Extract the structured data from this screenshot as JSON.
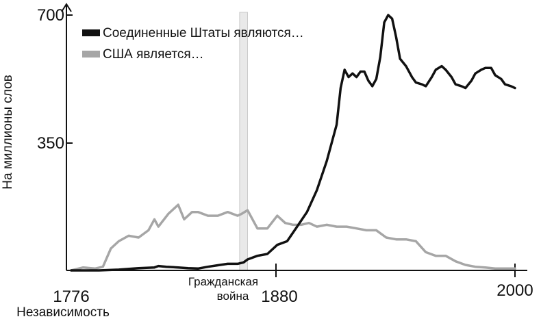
{
  "chart_data": {
    "type": "line",
    "title": "",
    "xlabel": "Независимость",
    "ylabel": "На миллионы слов",
    "xlim": [
      1776,
      2000
    ],
    "ylim": [
      0,
      700
    ],
    "x_ticks": [
      "1776",
      "1880",
      "2000"
    ],
    "y_ticks": [
      "350",
      "700"
    ],
    "legend_placement": "top-left",
    "annotation": {
      "label_line1": "Гражданская",
      "label_line2": "война",
      "x_start": 1861,
      "x_end": 1865
    },
    "series": [
      {
        "name": "Соединенные Штаты являются…",
        "color": "#111111",
        "x": [
          1776,
          1790,
          1800,
          1810,
          1818,
          1820,
          1824,
          1830,
          1835,
          1840,
          1845,
          1850,
          1855,
          1860,
          1863,
          1865,
          1870,
          1875,
          1880,
          1885,
          1890,
          1895,
          1900,
          1905,
          1910,
          1912,
          1914,
          1916,
          1918,
          1920,
          1922,
          1924,
          1926,
          1928,
          1930,
          1932,
          1934,
          1936,
          1938,
          1940,
          1942,
          1945,
          1948,
          1950,
          1953,
          1955,
          1958,
          1960,
          1963,
          1965,
          1968,
          1970,
          1973,
          1975,
          1978,
          1980,
          1983,
          1985,
          1988,
          1990,
          1993,
          1995,
          1998,
          2000
        ],
        "y": [
          0,
          0,
          2,
          6,
          8,
          12,
          10,
          8,
          6,
          5,
          10,
          14,
          18,
          18,
          22,
          30,
          40,
          45,
          70,
          80,
          120,
          160,
          220,
          300,
          400,
          500,
          550,
          530,
          540,
          530,
          545,
          545,
          520,
          505,
          525,
          585,
          680,
          700,
          690,
          640,
          580,
          560,
          530,
          515,
          510,
          505,
          530,
          550,
          560,
          550,
          530,
          510,
          505,
          500,
          520,
          540,
          550,
          555,
          555,
          535,
          525,
          510,
          505,
          500
        ]
      },
      {
        "name": "США является…",
        "color": "#a6a6a6",
        "x": [
          1776,
          1782,
          1788,
          1792,
          1796,
          1800,
          1805,
          1810,
          1815,
          1818,
          1820,
          1825,
          1830,
          1833,
          1837,
          1840,
          1845,
          1850,
          1855,
          1860,
          1862,
          1865,
          1870,
          1875,
          1880,
          1884,
          1888,
          1892,
          1896,
          1900,
          1905,
          1910,
          1915,
          1920,
          1925,
          1930,
          1935,
          1940,
          1945,
          1950,
          1955,
          1960,
          1965,
          1970,
          1975,
          1980,
          1985,
          1990,
          1995,
          2000
        ],
        "y": [
          0,
          8,
          5,
          10,
          60,
          80,
          95,
          90,
          110,
          140,
          120,
          155,
          180,
          140,
          160,
          160,
          150,
          150,
          160,
          150,
          155,
          165,
          115,
          115,
          150,
          130,
          125,
          125,
          130,
          120,
          125,
          120,
          120,
          115,
          110,
          110,
          90,
          85,
          85,
          80,
          50,
          40,
          40,
          25,
          15,
          10,
          8,
          5,
          5,
          5
        ]
      }
    ]
  }
}
